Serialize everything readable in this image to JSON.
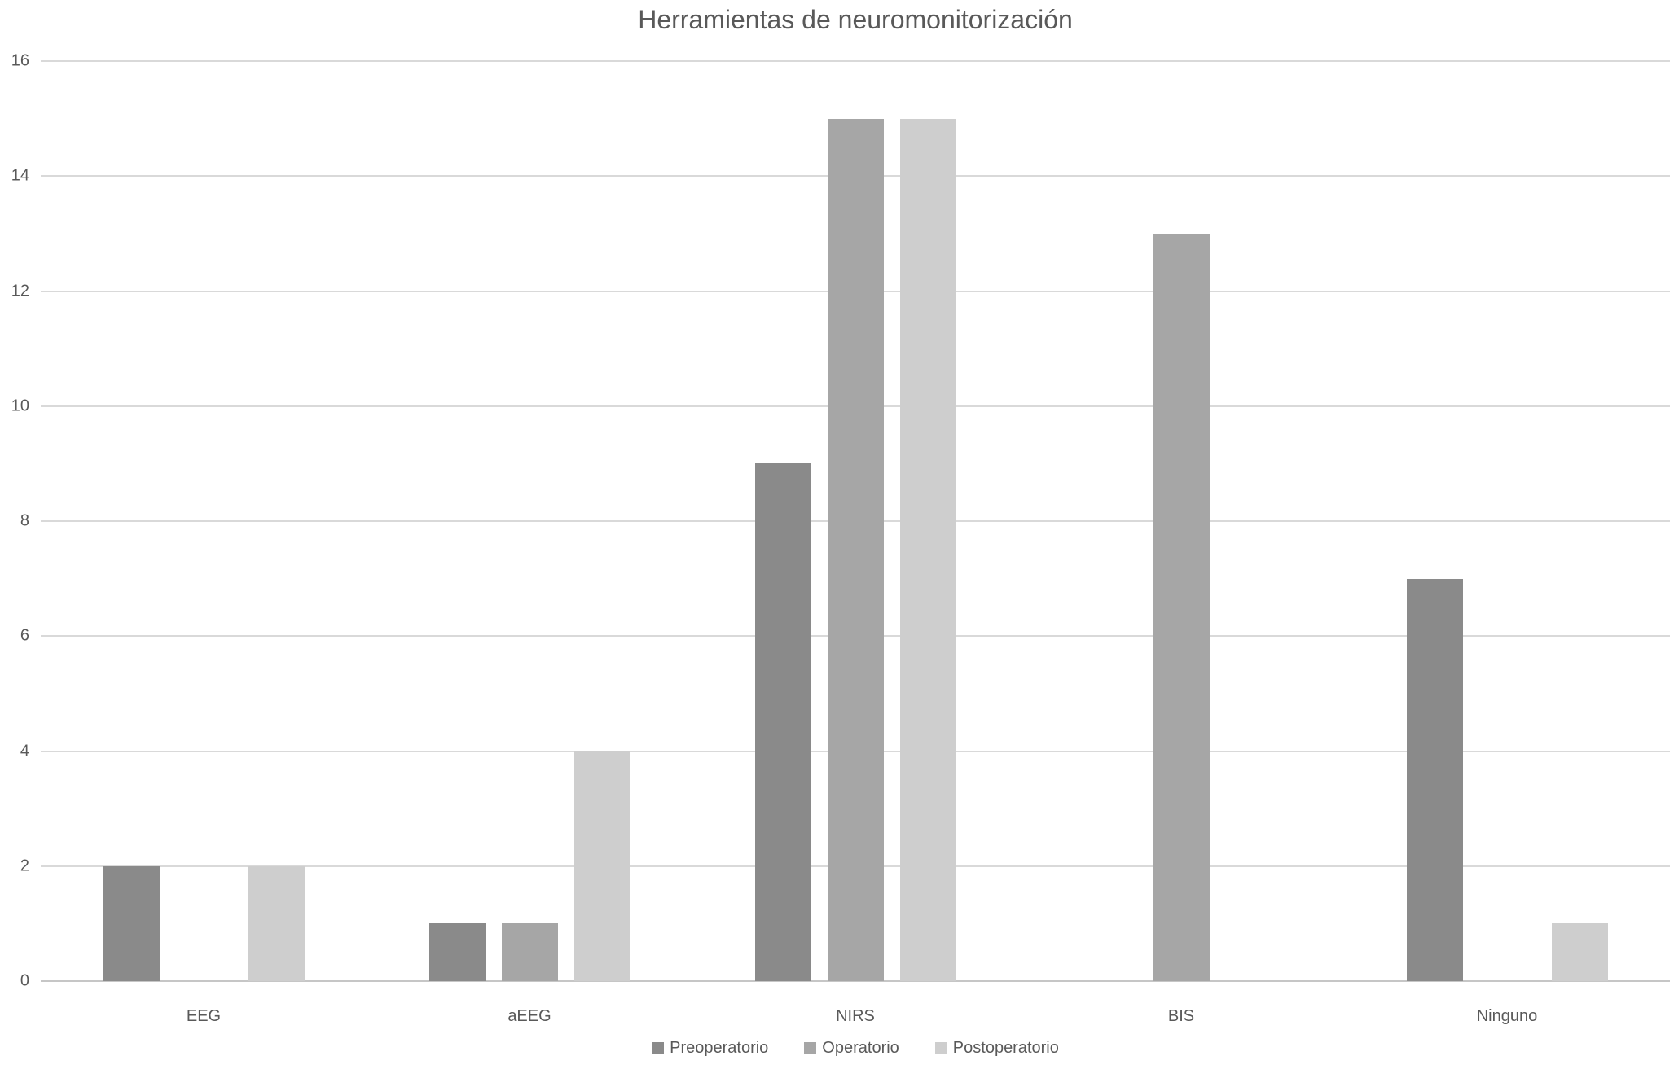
{
  "chart_data": {
    "type": "bar",
    "title": "Herramientas de neuromonitorización",
    "xlabel": "",
    "ylabel": "",
    "categories": [
      "EEG",
      "aEEG",
      "NIRS",
      "BIS",
      "Ninguno"
    ],
    "series": [
      {
        "name": "Preoperatorio",
        "color": "#8a8a8a",
        "values": [
          2,
          1,
          9,
          0,
          7
        ]
      },
      {
        "name": "Operatorio",
        "color": "#a6a6a6",
        "values": [
          0,
          1,
          15,
          13,
          0
        ]
      },
      {
        "name": "Postoperatorio",
        "color": "#cecece",
        "values": [
          2,
          4,
          15,
          0,
          1
        ]
      }
    ],
    "ylim": [
      0,
      16
    ],
    "y_ticks": [
      0,
      2,
      4,
      6,
      8,
      10,
      12,
      14,
      16
    ],
    "grid": true,
    "legend_position": "bottom",
    "style": {
      "grid_color": "#d9d9d9",
      "axis_color": "#c6c6c6",
      "text_color": "#595959",
      "title_color": "#595959",
      "background": "#ffffff"
    }
  }
}
